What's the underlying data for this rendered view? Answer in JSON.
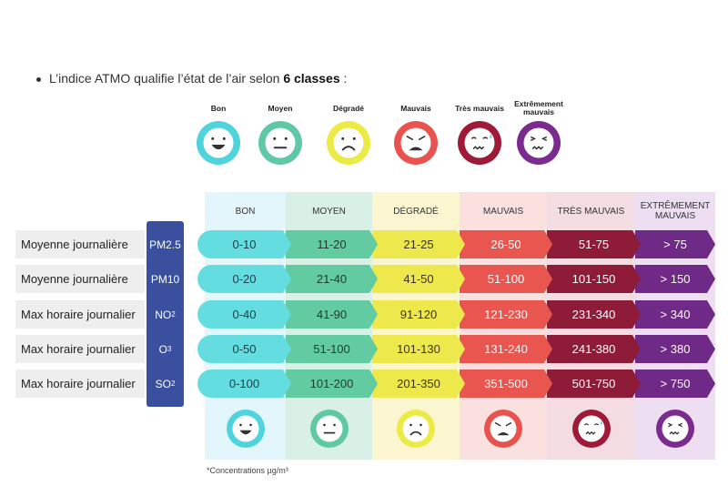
{
  "intro": {
    "text_before": "L’indice ATMO qualifie l’état de l’air selon ",
    "text_bold": "6 classes",
    "text_after": " :"
  },
  "legend": [
    {
      "label": "Bon",
      "color": "#4fd3dc",
      "icon": "happy-face-icon"
    },
    {
      "label": "Moyen",
      "color": "#5fc9a4",
      "icon": "neutral-face-icon"
    },
    {
      "label": "Dégradé",
      "color": "#ecea45",
      "icon": "sad-face-icon"
    },
    {
      "label": "Mauvais",
      "color": "#e8534f",
      "icon": "angry-face-icon"
    },
    {
      "label": "Très mauvais",
      "color": "#9e1a36",
      "icon": "sick-face-icon"
    },
    {
      "label": "Extrêmement mauvais",
      "color": "#7b2b8e",
      "icon": "dizzy-face-icon"
    }
  ],
  "table": {
    "headers": [
      "BON",
      "MOYEN",
      "DÉGRADÉ",
      "MAUVAIS",
      "TRÈS MAUVAIS",
      "EXTRÊMEMENT MAUVAIS"
    ],
    "header_bg": [
      "#e3f6fb",
      "#d8f0e6",
      "#fbf6cf",
      "#fbe0e0",
      "#f3dde3",
      "#eddef2"
    ],
    "cell_colors": [
      "#63dde0",
      "#62cba2",
      "#ede84c",
      "#e9564f",
      "#8e1c39",
      "#6e2a86"
    ],
    "cell_text_colors": [
      "#1f3a44",
      "#1f3a30",
      "#3a3410",
      "#ffffff",
      "#ffffff",
      "#ffffff"
    ],
    "rows": [
      {
        "label": "Moyenne journalière",
        "pollutant": "PM2.5",
        "sub": "",
        "values": [
          "0-10",
          "11-20",
          "21-25",
          "26-50",
          "51-75",
          "> 75"
        ]
      },
      {
        "label": "Moyenne journalière",
        "pollutant": "PM10",
        "sub": "",
        "values": [
          "0-20",
          "21-40",
          "41-50",
          "51-100",
          "101-150",
          "> 150"
        ]
      },
      {
        "label": "Max horaire journalier",
        "pollutant": "NO",
        "sub": "2",
        "values": [
          "0-40",
          "41-90",
          "91-120",
          "121-230",
          "231-340",
          "> 340"
        ]
      },
      {
        "label": "Max horaire journalier",
        "pollutant": "O",
        "sub": "3",
        "values": [
          "0-50",
          "51-100",
          "101-130",
          "131-240",
          "241-380",
          "> 380"
        ]
      },
      {
        "label": "Max horaire journalier",
        "pollutant": "SO",
        "sub": "2",
        "values": [
          "0-100",
          "101-200",
          "201-350",
          "351-500",
          "501-750",
          "> 750"
        ]
      }
    ]
  },
  "footnote": "*Concentrations µg/m³"
}
